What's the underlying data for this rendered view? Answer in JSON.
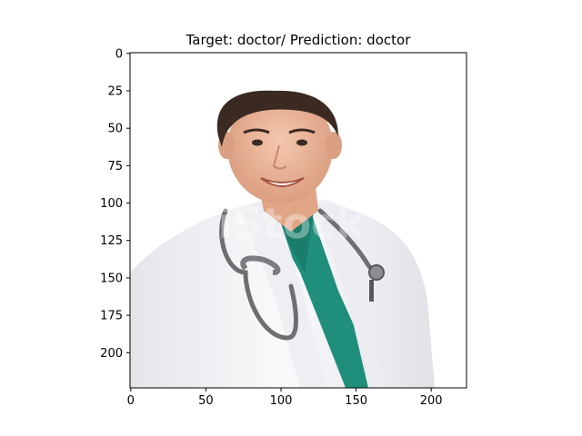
{
  "figure": {
    "title": "Target: doctor/ Prediction: doctor"
  },
  "image_description_free": true,
  "image": {
    "subject": "smiling-doctor-photo",
    "watermark_text": "iStock"
  },
  "axes": {
    "x_ticks": [
      {
        "value": 0,
        "label": "0"
      },
      {
        "value": 50,
        "label": "50"
      },
      {
        "value": 100,
        "label": "100"
      },
      {
        "value": 150,
        "label": "150"
      },
      {
        "value": 200,
        "label": "200"
      }
    ],
    "y_ticks": [
      {
        "value": 0,
        "label": "0"
      },
      {
        "value": 25,
        "label": "25"
      },
      {
        "value": 50,
        "label": "50"
      },
      {
        "value": 75,
        "label": "75"
      },
      {
        "value": 100,
        "label": "100"
      },
      {
        "value": 125,
        "label": "125"
      },
      {
        "value": 150,
        "label": "150"
      },
      {
        "value": 175,
        "label": "175"
      },
      {
        "value": 200,
        "label": "200"
      }
    ],
    "x_range": [
      -0.5,
      223.5
    ],
    "y_range": [
      -0.5,
      223.5
    ]
  },
  "colors": {
    "scrub": "#1f8f7c",
    "coat": "#f3f3f5",
    "skin": "#eab79c",
    "hair": "#3b2a22",
    "stethoscope": "#6d6f73"
  }
}
